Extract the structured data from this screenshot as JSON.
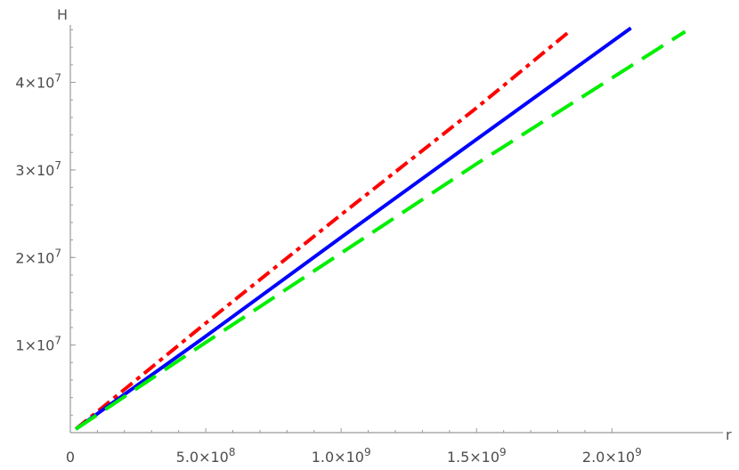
{
  "chart_data": {
    "type": "line",
    "title": "",
    "xlabel": "r",
    "ylabel": "H",
    "xlim": [
      0,
      2400000000.0
    ],
    "ylim": [
      0,
      49000000.0
    ],
    "grid": false,
    "legend": "none",
    "x_ticks": [
      {
        "value": 0,
        "label": "0"
      },
      {
        "value": 500000000.0,
        "label": "5.0×10",
        "exp": "8"
      },
      {
        "value": 1000000000.0,
        "label": "1.0×10",
        "exp": "9"
      },
      {
        "value": 1500000000.0,
        "label": "1.5×10",
        "exp": "9"
      },
      {
        "value": 2000000000.0,
        "label": "2.0×10",
        "exp": "9"
      }
    ],
    "y_ticks": [
      {
        "value": 10000000.0,
        "label": "1×10",
        "exp": "7"
      },
      {
        "value": 20000000.0,
        "label": "2×10",
        "exp": "7"
      },
      {
        "value": 30000000.0,
        "label": "3×10",
        "exp": "7"
      },
      {
        "value": 40000000.0,
        "label": "4×10",
        "exp": "7"
      }
    ],
    "series": [
      {
        "color": "#ff0000",
        "style": "dashdot",
        "x": [
          20000000.0,
          500000000.0,
          1000000000.0,
          1500000000.0,
          1850000000.0
        ],
        "y": [
          400000.0,
          12500000.0,
          24900000.0,
          37100000.0,
          46000000.0
        ]
      },
      {
        "color": "#0000ff",
        "style": "solid",
        "x": [
          20000000.0,
          500000000.0,
          1000000000.0,
          1500000000.0,
          2070000000.0
        ],
        "y": [
          400000.0,
          11000000.0,
          22300000.0,
          33500000.0,
          46200000.0
        ]
      },
      {
        "color": "#00ee00",
        "style": "dashed",
        "x": [
          20000000.0,
          500000000.0,
          1000000000.0,
          1500000000.0,
          2270000000.0
        ],
        "y": [
          400000.0,
          10300000.0,
          20500000.0,
          30700000.0,
          45800000.0
        ]
      }
    ]
  }
}
